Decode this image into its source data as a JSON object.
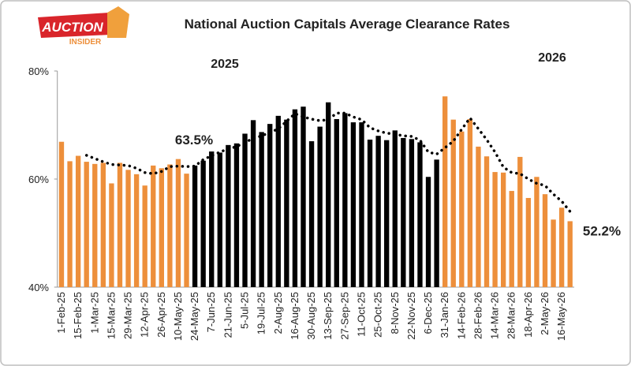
{
  "logo": {
    "top": "AUCTION",
    "bottom": "INSIDER"
  },
  "chart_data": {
    "type": "bar",
    "title": "National Auction Capitals Average Clearance Rates",
    "categories": [
      "1-Feb-25",
      null,
      "15-Feb-25",
      null,
      "1-Mar-25",
      null,
      "15-Mar-25",
      null,
      "29-Mar-25",
      null,
      "12-Apr-25",
      null,
      "26-Apr-25",
      null,
      "10-May-25",
      null,
      "24-May-25",
      null,
      "7-Jun-25",
      null,
      "21-Jun-25",
      null,
      "5-Jul-25",
      null,
      "19-Jul-25",
      null,
      "2-Aug-25",
      null,
      "16-Aug-25",
      null,
      "30-Aug-25",
      null,
      "13-Sep-25",
      null,
      "27-Sep-25",
      null,
      "11-Oct-25",
      null,
      "25-Oct-25",
      null,
      "8-Nov-25",
      null,
      "22-Nov-25",
      null,
      "6-Dec-25",
      null,
      "31-Jan-26",
      null,
      "14-Feb-26",
      null,
      "28-Feb-26",
      null,
      "14-Mar-26",
      null,
      "28-Mar-26",
      null,
      "18-Apr-26",
      null,
      "2-May-26",
      null,
      "16-May-26",
      null
    ],
    "series": [
      {
        "name": "Clearance rate",
        "type": "bar",
        "values": [
          66.9,
          63.3,
          64.3,
          63.2,
          62.8,
          63.0,
          59.2,
          63.0,
          61.7,
          60.9,
          58.8,
          62.5,
          62.0,
          62.7,
          63.7,
          61.0,
          62.5,
          63.4,
          65.1,
          64.9,
          66.3,
          66.6,
          68.4,
          70.9,
          68.7,
          70.2,
          71.7,
          71.0,
          72.9,
          73.4,
          67.0,
          69.7,
          74.2,
          71.1,
          72.2,
          70.5,
          70.5,
          67.3,
          68.0,
          67.2,
          69.0,
          67.6,
          67.4,
          66.8,
          60.4,
          63.6,
          75.3,
          71.0,
          68.8,
          71.1,
          66.0,
          64.2,
          61.3,
          61.2,
          57.8,
          64.1,
          56.5,
          60.4,
          57.2,
          52.5,
          54.7,
          52.2
        ],
        "colors": [
          "#ed8f3b",
          "#ed8f3b",
          "#ed8f3b",
          "#ed8f3b",
          "#ed8f3b",
          "#ed8f3b",
          "#ed8f3b",
          "#ed8f3b",
          "#ed8f3b",
          "#ed8f3b",
          "#ed8f3b",
          "#ed8f3b",
          "#ed8f3b",
          "#ed8f3b",
          "#ed8f3b",
          "#ed8f3b",
          "#000000",
          "#000000",
          "#000000",
          "#000000",
          "#000000",
          "#000000",
          "#000000",
          "#000000",
          "#000000",
          "#000000",
          "#000000",
          "#000000",
          "#000000",
          "#000000",
          "#000000",
          "#000000",
          "#000000",
          "#000000",
          "#000000",
          "#000000",
          "#000000",
          "#000000",
          "#000000",
          "#000000",
          "#000000",
          "#000000",
          "#000000",
          "#000000",
          "#000000",
          "#000000",
          "#ed8f3b",
          "#ed8f3b",
          "#ed8f3b",
          "#ed8f3b",
          "#ed8f3b",
          "#ed8f3b",
          "#ed8f3b",
          "#ed8f3b",
          "#ed8f3b",
          "#ed8f3b",
          "#ed8f3b",
          "#ed8f3b",
          "#ed8f3b",
          "#ed8f3b",
          "#ed8f3b",
          "#ed8f3b"
        ]
      },
      {
        "name": "Trend",
        "type": "line",
        "color": "#000000",
        "dashed": true,
        "values": [
          null,
          null,
          null,
          64.4,
          63.8,
          63.2,
          62.7,
          62.6,
          62.5,
          62.0,
          61.2,
          61.0,
          61.4,
          62.3,
          62.4,
          62.3,
          62.4,
          63.6,
          64.3,
          65.0,
          65.6,
          66.0,
          66.8,
          67.5,
          68.0,
          68.6,
          69.3,
          70.7,
          72.1,
          71.5,
          71.1,
          70.8,
          71.0,
          72.2,
          72.2,
          71.5,
          71.0,
          69.5,
          68.9,
          68.5,
          68.3,
          68.0,
          67.9,
          67.2,
          65.0,
          64.6,
          65.8,
          67.0,
          69.2,
          71.3,
          69.3,
          67.3,
          65.0,
          62.2,
          61.2,
          61.0,
          60.0,
          59.2,
          58.8,
          57.2,
          55.9,
          54.0
        ]
      }
    ],
    "ylim": [
      40,
      80
    ],
    "yticks": [
      {
        "value": 40,
        "label": "40%"
      },
      {
        "value": 60,
        "label": "60%"
      },
      {
        "value": 80,
        "label": "80%"
      }
    ],
    "grid": false,
    "annotations": [
      {
        "value": 63.5,
        "label": "63.5%"
      },
      {
        "value": 52.2,
        "label": "52.2%"
      }
    ],
    "year_labels": [
      "2025",
      "2026"
    ]
  }
}
